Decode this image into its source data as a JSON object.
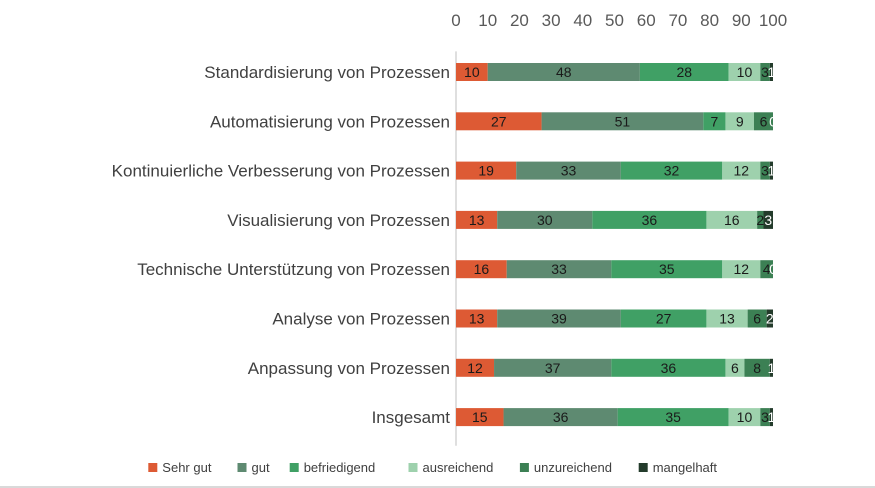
{
  "chart_data": {
    "type": "bar",
    "orientation": "horizontal",
    "stacked": true,
    "title": "",
    "xlabel": "",
    "ylabel": "",
    "xlim": [
      0,
      100
    ],
    "x_ticks": [
      "0",
      "10",
      "20",
      "30",
      "40",
      "50",
      "60",
      "70",
      "80",
      "90",
      "100"
    ],
    "x_axis_position": "top",
    "grid": false,
    "legend_position": "bottom",
    "categories": [
      "Standardisierung von Prozessen",
      "Automatisierung von Prozessen",
      "Kontinuierliche Verbesserung von Prozessen",
      "Visualisierung von Prozessen",
      "Technische Unterstützung von Prozessen",
      "Analyse von Prozessen",
      "Anpassung von Prozessen",
      "Insgesamt"
    ],
    "series": [
      {
        "name": "Sehr gut",
        "color": "#dd5a34",
        "values": [
          10,
          27,
          19,
          13,
          16,
          13,
          12,
          15
        ]
      },
      {
        "name": "gut",
        "color": "#5e8a71",
        "values": [
          48,
          51,
          33,
          30,
          33,
          39,
          37,
          36
        ]
      },
      {
        "name": "befriedigend",
        "color": "#40a065",
        "values": [
          28,
          7,
          32,
          36,
          35,
          27,
          36,
          35
        ]
      },
      {
        "name": "ausreichend",
        "color": "#9ed1ad",
        "values": [
          10,
          9,
          12,
          16,
          12,
          13,
          6,
          10
        ]
      },
      {
        "name": "unzureichend",
        "color": "#3c8054",
        "values": [
          3,
          6,
          3,
          2,
          4,
          6,
          8,
          3
        ]
      },
      {
        "name": "mangelhaft",
        "color": "#233b2b",
        "values": [
          1,
          0,
          1,
          3,
          0,
          2,
          1,
          1
        ]
      }
    ]
  }
}
